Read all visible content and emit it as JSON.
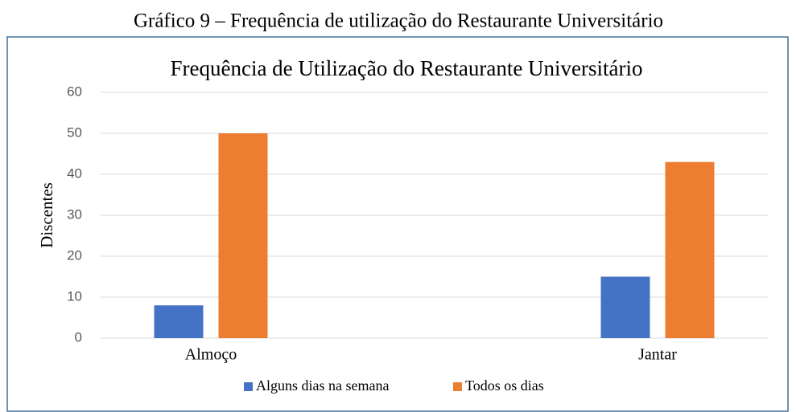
{
  "caption": "Gráfico 9 – Frequência de utilização do Restaurante Universitário",
  "chart_data": {
    "type": "bar",
    "title": "Frequência de Utilização do Restaurante Universitário",
    "y_label": "Discentes",
    "categories": [
      "Almoço",
      "Jantar"
    ],
    "series": [
      {
        "name": "Alguns dias na semana",
        "color": "#4472c4",
        "values": [
          8,
          15
        ]
      },
      {
        "name": "Todos os dias",
        "color": "#ed7d31",
        "values": [
          50,
          43
        ]
      }
    ],
    "ylim": [
      0,
      60
    ],
    "yticks": [
      0,
      10,
      20,
      30,
      40,
      50,
      60
    ],
    "grid": true,
    "legend": "bottom"
  }
}
